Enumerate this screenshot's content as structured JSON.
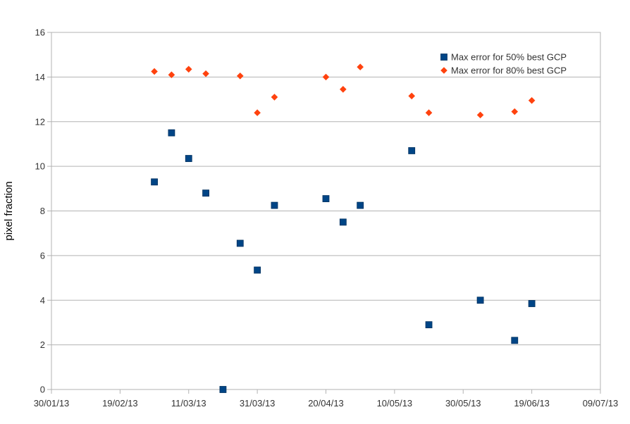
{
  "chart_data": {
    "type": "scatter",
    "title": "",
    "xlabel": "",
    "ylabel": "pixel fraction",
    "x_type": "date",
    "xlim": [
      "2013-01-30",
      "2013-07-09"
    ],
    "x_ticks": [
      "2013-01-30",
      "2013-02-19",
      "2013-03-11",
      "2013-03-31",
      "2013-04-20",
      "2013-05-10",
      "2013-05-30",
      "2013-06-19",
      "2013-07-09"
    ],
    "x_tick_labels": [
      "30/01/13",
      "19/02/13",
      "11/03/13",
      "31/03/13",
      "20/04/13",
      "10/05/13",
      "30/05/13",
      "19/06/13",
      "09/07/13"
    ],
    "ylim": [
      0,
      16
    ],
    "y_ticks": [
      0,
      2,
      4,
      6,
      8,
      10,
      12,
      14,
      16
    ],
    "grid": true,
    "legend_position": "top-right",
    "series": [
      {
        "name": "Max error for 50% best GCP",
        "marker": "square",
        "color": "#004586",
        "points": [
          {
            "x": "2013-03-01",
            "y": 9.3
          },
          {
            "x": "2013-03-06",
            "y": 11.5
          },
          {
            "x": "2013-03-11",
            "y": 10.35
          },
          {
            "x": "2013-03-16",
            "y": 8.8
          },
          {
            "x": "2013-03-21",
            "y": 0.0
          },
          {
            "x": "2013-03-26",
            "y": 6.55
          },
          {
            "x": "2013-03-31",
            "y": 5.35
          },
          {
            "x": "2013-04-05",
            "y": 8.25
          },
          {
            "x": "2013-04-20",
            "y": 8.55
          },
          {
            "x": "2013-04-25",
            "y": 7.5
          },
          {
            "x": "2013-04-30",
            "y": 8.25
          },
          {
            "x": "2013-05-15",
            "y": 10.7
          },
          {
            "x": "2013-05-20",
            "y": 2.9
          },
          {
            "x": "2013-06-04",
            "y": 4.0
          },
          {
            "x": "2013-06-14",
            "y": 2.2
          },
          {
            "x": "2013-06-19",
            "y": 3.85
          }
        ]
      },
      {
        "name": "Max error for 80% best GCP",
        "marker": "diamond",
        "color": "#ff420e",
        "points": [
          {
            "x": "2013-03-01",
            "y": 14.25
          },
          {
            "x": "2013-03-06",
            "y": 14.1
          },
          {
            "x": "2013-03-11",
            "y": 14.35
          },
          {
            "x": "2013-03-16",
            "y": 14.15
          },
          {
            "x": "2013-03-26",
            "y": 14.05
          },
          {
            "x": "2013-03-31",
            "y": 12.4
          },
          {
            "x": "2013-04-05",
            "y": 13.1
          },
          {
            "x": "2013-04-20",
            "y": 14.0
          },
          {
            "x": "2013-04-25",
            "y": 13.45
          },
          {
            "x": "2013-04-30",
            "y": 14.45
          },
          {
            "x": "2013-05-15",
            "y": 13.15
          },
          {
            "x": "2013-05-20",
            "y": 12.4
          },
          {
            "x": "2013-06-04",
            "y": 12.3
          },
          {
            "x": "2013-06-14",
            "y": 12.45
          },
          {
            "x": "2013-06-19",
            "y": 12.95
          }
        ]
      }
    ]
  }
}
